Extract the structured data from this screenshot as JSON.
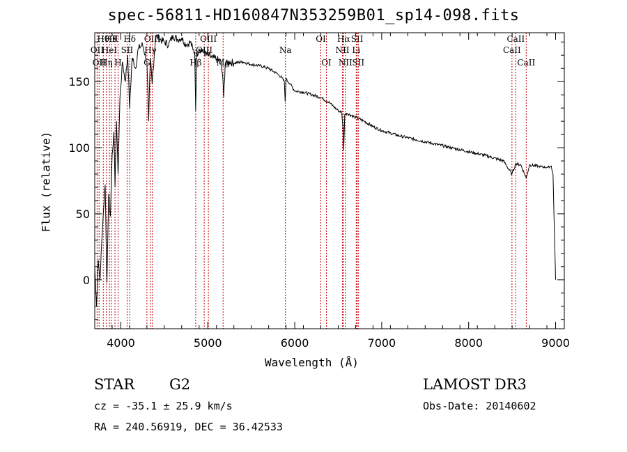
{
  "chart_data": {
    "type": "line",
    "title": "spec-56811-HD160847N353259B01_sp14-098.fits",
    "xlabel": "Wavelength (Å)",
    "ylabel": "Flux (relative)",
    "xlim": [
      3700,
      9100
    ],
    "ylim": [
      -37,
      187
    ],
    "xticks": [
      4000,
      5000,
      6000,
      7000,
      8000,
      9000
    ],
    "yticks": [
      0,
      50,
      100,
      150
    ],
    "series": [
      {
        "name": "spectrum",
        "x": [
          3700,
          3720,
          3740,
          3760,
          3780,
          3800,
          3820,
          3840,
          3860,
          3880,
          3900,
          3920,
          3933,
          3950,
          3968,
          3990,
          4020,
          4050,
          4080,
          4101,
          4130,
          4170,
          4200,
          4250,
          4300,
          4320,
          4340,
          4360,
          4400,
          4450,
          4500,
          4550,
          4600,
          4650,
          4700,
          4750,
          4800,
          4830,
          4850,
          4861,
          4870,
          4900,
          4950,
          5000,
          5050,
          5100,
          5150,
          5170,
          5183,
          5200,
          5250,
          5300,
          5400,
          5500,
          5600,
          5700,
          5800,
          5850,
          5880,
          5890,
          5900,
          5950,
          6000,
          6100,
          6200,
          6300,
          6400,
          6450,
          6500,
          6540,
          6555,
          6563,
          6575,
          6600,
          6700,
          6800,
          6900,
          7000,
          7200,
          7400,
          7600,
          7800,
          8000,
          8200,
          8400,
          8498,
          8542,
          8600,
          8662,
          8700,
          8800,
          8900,
          8950,
          8970,
          8985,
          9000
        ],
        "y": [
          10,
          -20,
          15,
          0,
          28,
          52,
          72,
          -2,
          65,
          48,
          95,
          112,
          70,
          120,
          80,
          138,
          165,
          150,
          170,
          130,
          168,
          160,
          175,
          178,
          165,
          120,
          168,
          148,
          185,
          182,
          180,
          178,
          185,
          182,
          183,
          178,
          180,
          174,
          172,
          128,
          170,
          175,
          172,
          170,
          168,
          167,
          165,
          155,
          138,
          163,
          165,
          164,
          165,
          163,
          162,
          160,
          156,
          153,
          150,
          135,
          152,
          148,
          143,
          142,
          140,
          138,
          134,
          131,
          128,
          127,
          115,
          98,
          125,
          126,
          123,
          120,
          116,
          113,
          109,
          106,
          103,
          100,
          97,
          94,
          90,
          80,
          88,
          87,
          77,
          87,
          86,
          85,
          86,
          80,
          40,
          0
        ]
      }
    ],
    "line_markers": [
      {
        "wavelength": 3727,
        "label": "OII",
        "row": 2
      },
      {
        "wavelength": 3750,
        "label": "OII",
        "row": 3
      },
      {
        "wavelength": 3798,
        "label": "Hθ",
        "row": 1
      },
      {
        "wavelength": 3835,
        "label": "Hη",
        "row": 3
      },
      {
        "wavelength": 3869,
        "label": "HeI",
        "row": 2
      },
      {
        "wavelength": 3889,
        "label": "Hθ",
        "row": 1
      },
      {
        "wavelength": 3933,
        "label": "K",
        "row": 1
      },
      {
        "wavelength": 3968,
        "label": "H",
        "row": 3
      },
      {
        "wavelength": 4072,
        "label": "SII",
        "row": 2
      },
      {
        "wavelength": 4102,
        "label": "Hδ",
        "row": 1
      },
      {
        "wavelength": 4300,
        "label": "G",
        "row": 3
      },
      {
        "wavelength": 4341,
        "label": "Hγ",
        "row": 2
      },
      {
        "wavelength": 4363,
        "label": "OIII",
        "row": 1
      },
      {
        "wavelength": 4861,
        "label": "Hβ",
        "row": 3
      },
      {
        "wavelength": 4959,
        "label": "OIII",
        "row": 2
      },
      {
        "wavelength": 5007,
        "label": "OIII",
        "row": 1
      },
      {
        "wavelength": 5176,
        "label": "Mg",
        "row": 3
      },
      {
        "wavelength": 5893,
        "label": "Na",
        "row": 2
      },
      {
        "wavelength": 6300,
        "label": "OI",
        "row": 1
      },
      {
        "wavelength": 6364,
        "label": "OI",
        "row": 3
      },
      {
        "wavelength": 6548,
        "label": "NII",
        "row": 2
      },
      {
        "wavelength": 6563,
        "label": "Hα",
        "row": 1
      },
      {
        "wavelength": 6583,
        "label": "NII",
        "row": 3
      },
      {
        "wavelength": 6707,
        "label": "Li",
        "row": 2
      },
      {
        "wavelength": 6717,
        "label": "SII",
        "row": 1
      },
      {
        "wavelength": 6731,
        "label": "SII",
        "row": 3
      },
      {
        "wavelength": 8498,
        "label": "CaII",
        "row": 2
      },
      {
        "wavelength": 8542,
        "label": "CaII",
        "row": 1
      },
      {
        "wavelength": 8662,
        "label": "CaII",
        "row": 3
      }
    ]
  },
  "info": {
    "object_class": "STAR",
    "subclass": "G2",
    "survey": "LAMOST DR3",
    "redshift": "cz = -35.1 ± 25.9 km/s",
    "obs_date": "Obs-Date: 20140602",
    "coords": "RA = 240.56919, DEC =  36.42533"
  },
  "colors": {
    "line_marker": "#c00000",
    "spectrum": "#000000",
    "axes": "#000000"
  }
}
